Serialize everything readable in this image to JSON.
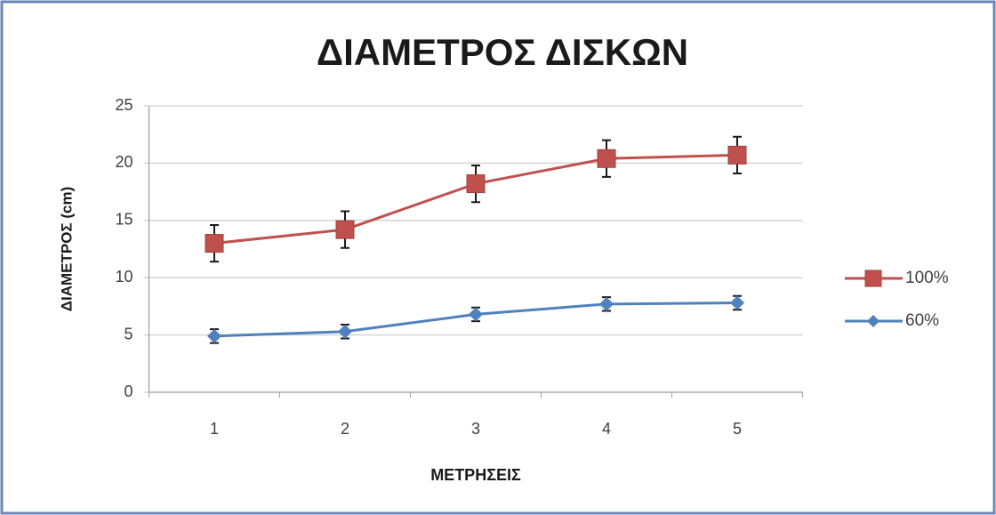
{
  "chart_data": {
    "type": "line",
    "title": "ΔΙΑΜΕΤΡΟΣ ΔΙΣΚΩΝ",
    "x_label": "ΜΕΤΡΗΣΕΙΣ",
    "y_label": "ΔΙΑΜΕΤΡΟΣ (cm)",
    "categories": [
      "1",
      "2",
      "3",
      "4",
      "5"
    ],
    "series": [
      {
        "name": "100%",
        "color": "#c0504d",
        "marker": "square",
        "values": [
          13,
          14.2,
          18.2,
          20.4,
          20.7
        ],
        "errors": [
          1.6,
          1.6,
          1.6,
          1.6,
          1.6
        ]
      },
      {
        "name": "60%",
        "color": "#4f81bd",
        "marker": "diamond",
        "values": [
          4.9,
          5.3,
          6.8,
          7.7,
          7.8
        ],
        "errors": [
          0.6,
          0.6,
          0.6,
          0.6,
          0.6
        ]
      }
    ],
    "ylim": [
      0,
      25
    ],
    "yticks": [
      0,
      5,
      10,
      15,
      20,
      25
    ],
    "grid": true,
    "legend": "right"
  }
}
